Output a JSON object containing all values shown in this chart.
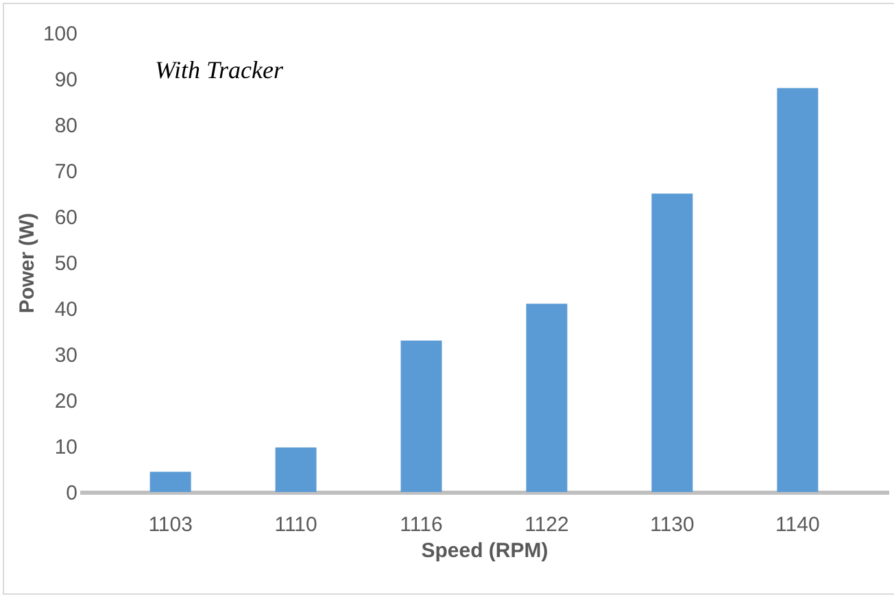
{
  "chart_data": {
    "type": "bar",
    "xlabel": "Speed (RPM)",
    "ylabel": "Power  (W)",
    "annotations": [
      "With Tracker"
    ],
    "categories": [
      "1103",
      "1110",
      "1116",
      "1122",
      "1130",
      "1140"
    ],
    "values": [
      4.4,
      9.7,
      33,
      41,
      65,
      88
    ],
    "color": "#5b9bd5",
    "ylim": [
      0,
      100
    ],
    "yticks": [
      0,
      10,
      20,
      30,
      40,
      50,
      60,
      70,
      80,
      90,
      100
    ],
    "grid": false
  }
}
